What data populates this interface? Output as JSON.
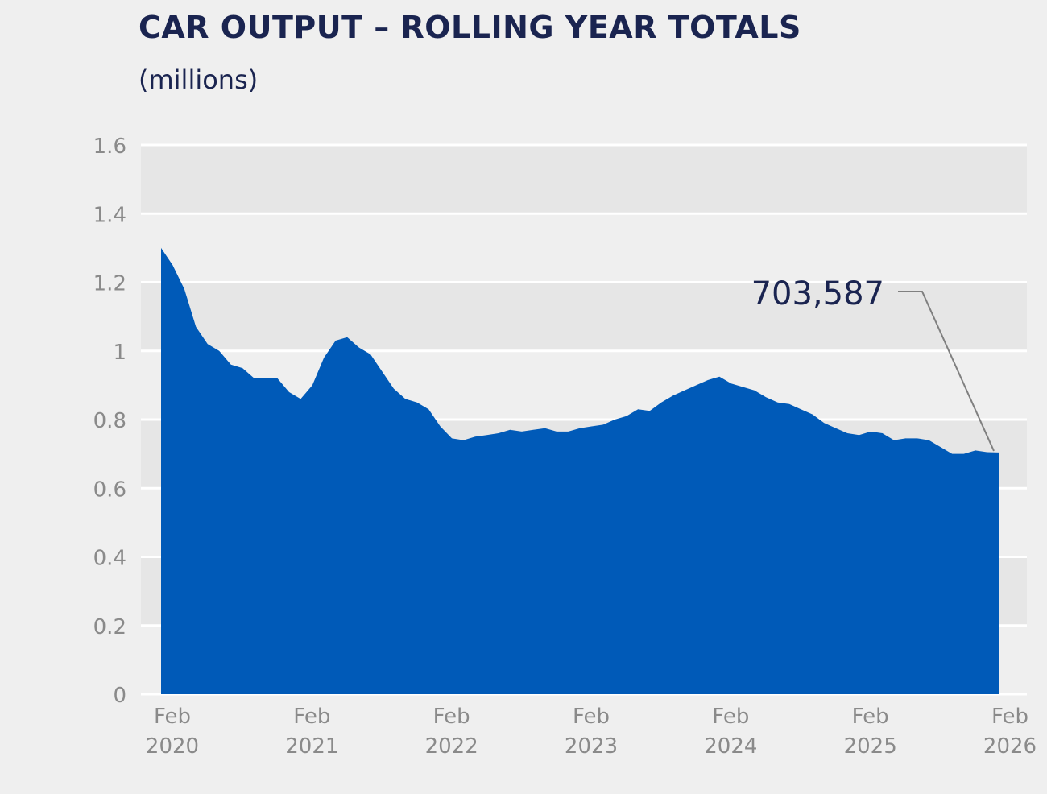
{
  "title": "CAR OUTPUT – ROLLING YEAR TOTALS",
  "subtitle": "(millions)",
  "colors": {
    "fill": "#005ab8",
    "text": "#1a2450",
    "axis_text": "#8a8a8a",
    "band": "#e6e6e6",
    "background": "#efefef",
    "leader": "#808080"
  },
  "chart_data": {
    "type": "area",
    "title": "CAR OUTPUT – ROLLING YEAR TOTALS",
    "subtitle": "(millions)",
    "ylim": [
      0,
      1.6
    ],
    "yticks": [
      "0",
      "0.2",
      "0.4",
      "0.6",
      "0.8",
      "1",
      "1.2",
      "1.4",
      "1.6"
    ],
    "ytick_values": [
      0,
      0.2,
      0.4,
      0.6,
      0.8,
      1.0,
      1.2,
      1.4,
      1.6
    ],
    "xticks": [
      {
        "month": "Feb",
        "year": "2020",
        "index": 0
      },
      {
        "month": "Feb",
        "year": "2021",
        "index": 12
      },
      {
        "month": "Feb",
        "year": "2022",
        "index": 24
      },
      {
        "month": "Feb",
        "year": "2023",
        "index": 36
      },
      {
        "month": "Feb",
        "year": "2024",
        "index": 48
      },
      {
        "month": "Feb",
        "year": "2025",
        "index": 60
      },
      {
        "month": "Feb",
        "year": "2026",
        "index": 72
      }
    ],
    "grid": "alternating horizontal bands",
    "series": [
      {
        "values": [
          1.3,
          1.25,
          1.18,
          1.07,
          1.02,
          1.0,
          0.96,
          0.95,
          0.92,
          0.92,
          0.92,
          0.88,
          0.86,
          0.9,
          0.98,
          1.03,
          1.04,
          1.01,
          0.99,
          0.94,
          0.89,
          0.86,
          0.85,
          0.83,
          0.78,
          0.745,
          0.74,
          0.75,
          0.755,
          0.76,
          0.77,
          0.765,
          0.77,
          0.775,
          0.765,
          0.765,
          0.775,
          0.78,
          0.785,
          0.8,
          0.81,
          0.83,
          0.825,
          0.85,
          0.87,
          0.885,
          0.9,
          0.915,
          0.925,
          0.905,
          0.895,
          0.885,
          0.865,
          0.85,
          0.845,
          0.83,
          0.815,
          0.79,
          0.775,
          0.76,
          0.755,
          0.765,
          0.76,
          0.74,
          0.745,
          0.745,
          0.74,
          0.72,
          0.7,
          0.7,
          0.71,
          0.705,
          0.704
        ]
      }
    ],
    "annotation": {
      "text": "703,587",
      "index": 72
    }
  }
}
